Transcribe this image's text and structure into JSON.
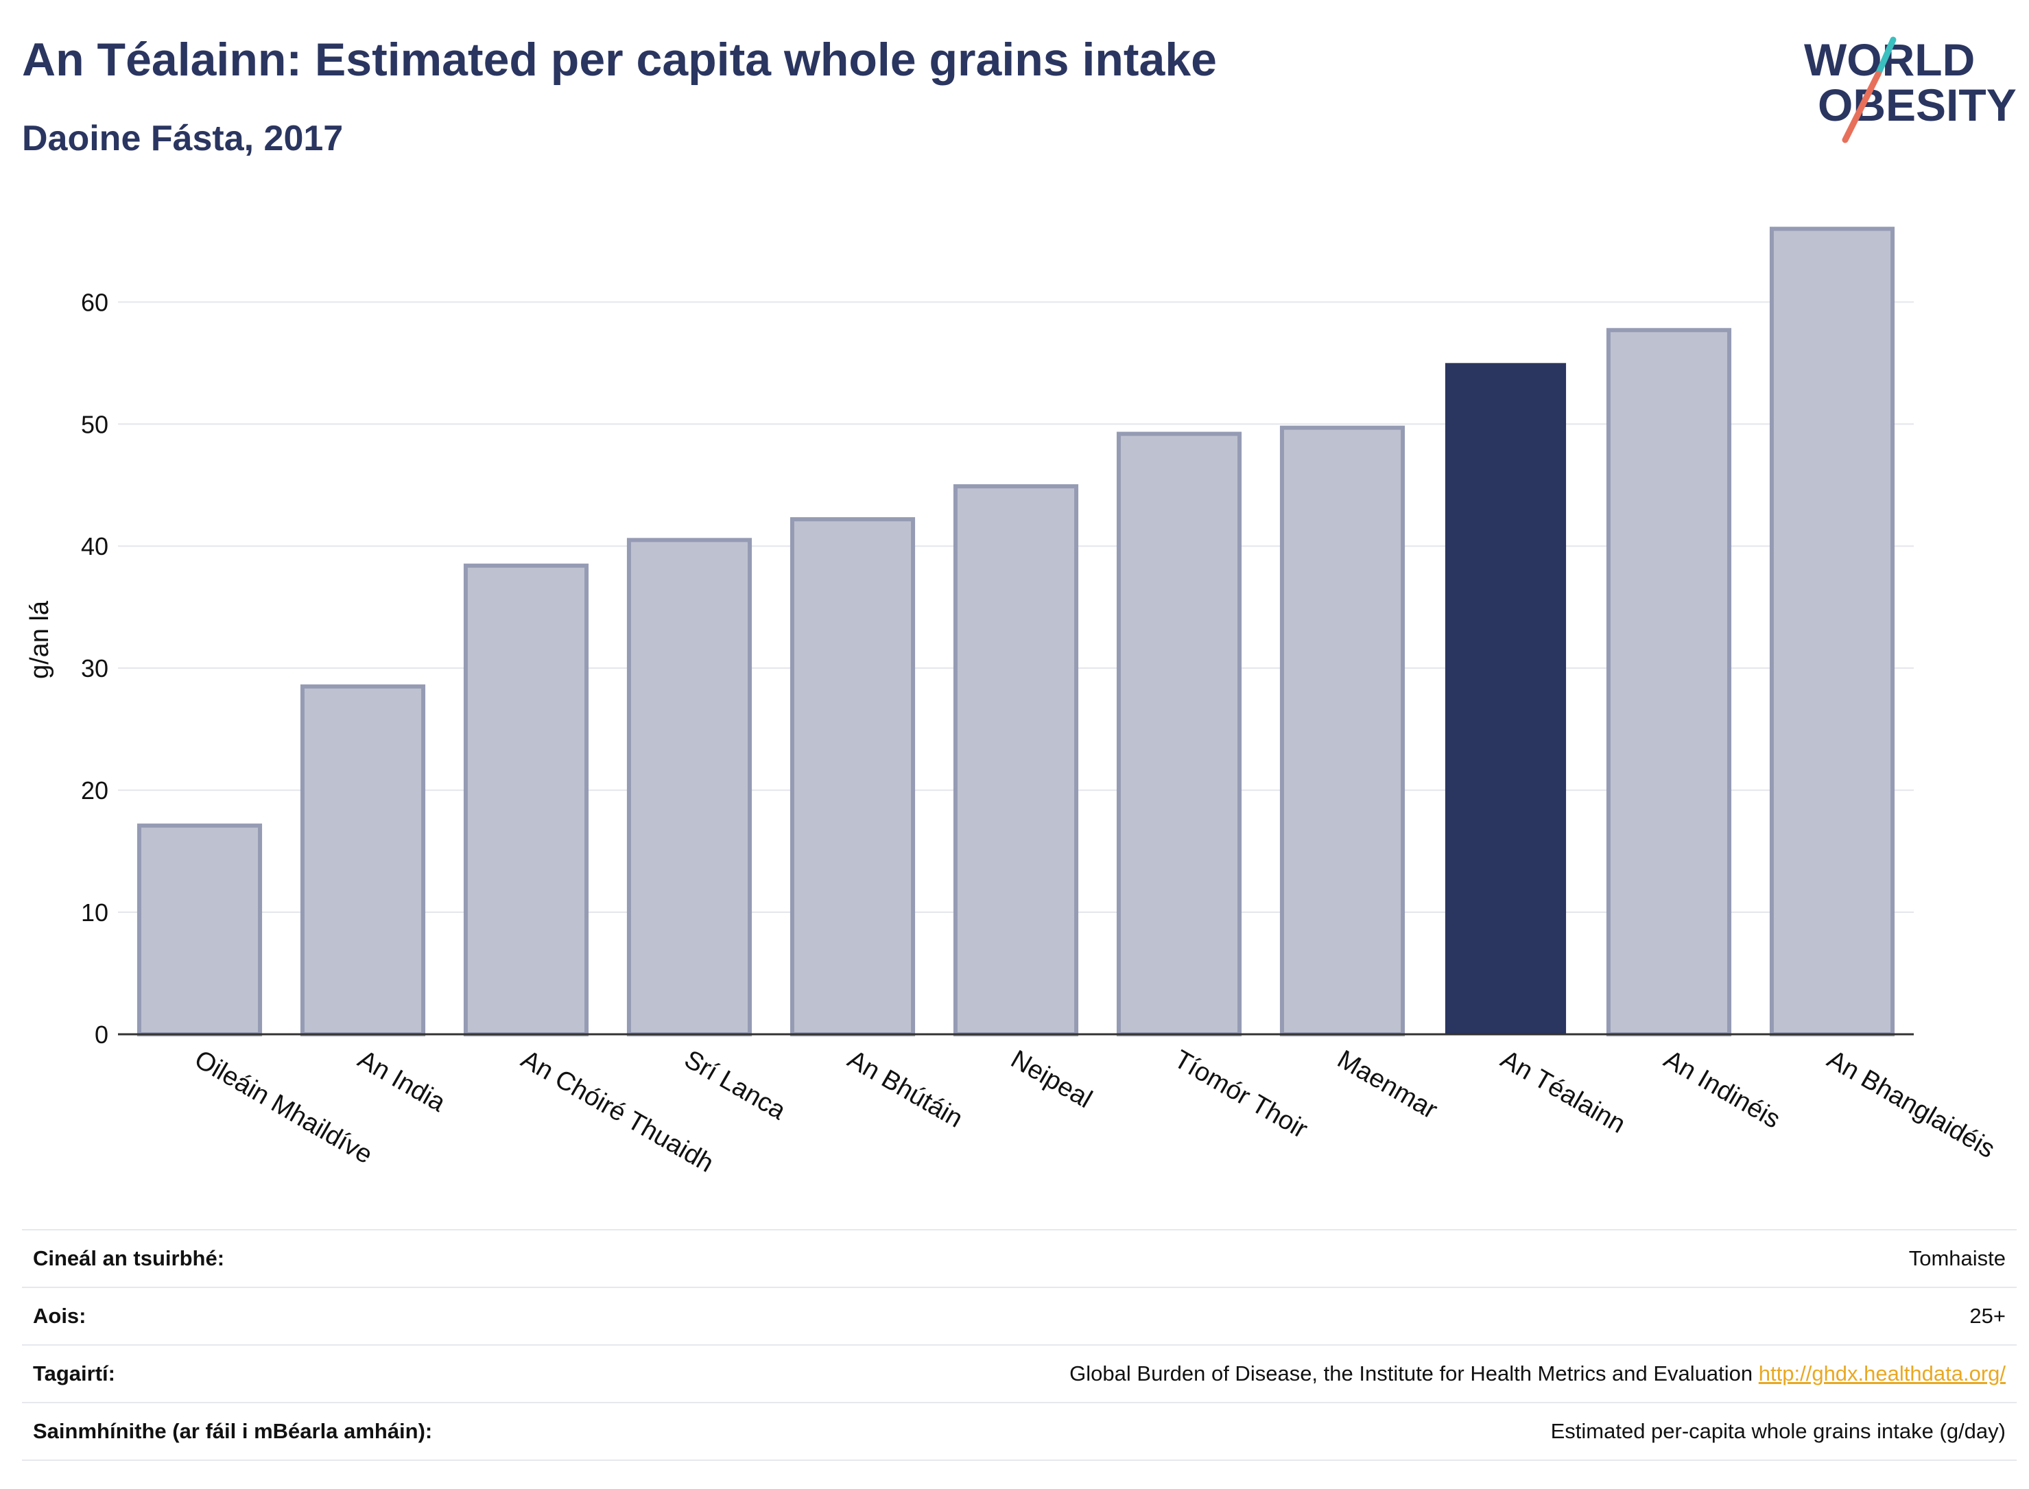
{
  "header": {
    "title": "An Téalainn: Estimated per capita whole grains intake",
    "subtitle": "Daoine Fásta, 2017"
  },
  "logo": {
    "line1": "WORLD",
    "line2": "OBESITY"
  },
  "colors": {
    "highlight_bar": "#2a3560",
    "other_bar_fill": "#bec1cf",
    "other_bar_stroke": "#969bb4",
    "title": "#2a3560",
    "link": "#e9a823",
    "logo_teal": "#3bbfbf",
    "logo_coral": "#e8705a"
  },
  "chart_data": {
    "type": "bar",
    "title": "An Téalainn: Estimated per capita whole grains intake",
    "subtitle": "Daoine Fásta, 2017",
    "xlabel": "",
    "ylabel": "g/an lá",
    "ylim": [
      0,
      68
    ],
    "yticks": [
      0,
      10,
      20,
      30,
      40,
      50,
      60
    ],
    "grid": true,
    "categories": [
      "Oileáin Mhaildíve",
      "An India",
      "An Chóiré Thuaidh",
      "Srí Lanca",
      "An Bhútáin",
      "Neipeal",
      "Tíomór Thoir",
      "Maenmar",
      "An Téalainn",
      "An Indinéis",
      "An Bhanglaidéis"
    ],
    "values": [
      17.1,
      28.5,
      38.4,
      40.5,
      42.2,
      44.9,
      49.2,
      49.7,
      55.0,
      57.7,
      66.0
    ],
    "highlight": "An Téalainn"
  },
  "metadata": [
    {
      "label": "Cineál an tsuirbhé:",
      "value": "Tomhaiste",
      "link": ""
    },
    {
      "label": "Aois:",
      "value": "25+",
      "link": ""
    },
    {
      "label": "Tagairtí:",
      "value": "Global Burden of Disease, the Institute for Health Metrics and Evaluation",
      "link": "http://ghdx.healthdata.org/"
    },
    {
      "label": "Sainmhínithe (ar fáil i mBéarla amháin):",
      "value": "Estimated per-capita whole grains intake (g/day)",
      "link": ""
    }
  ]
}
